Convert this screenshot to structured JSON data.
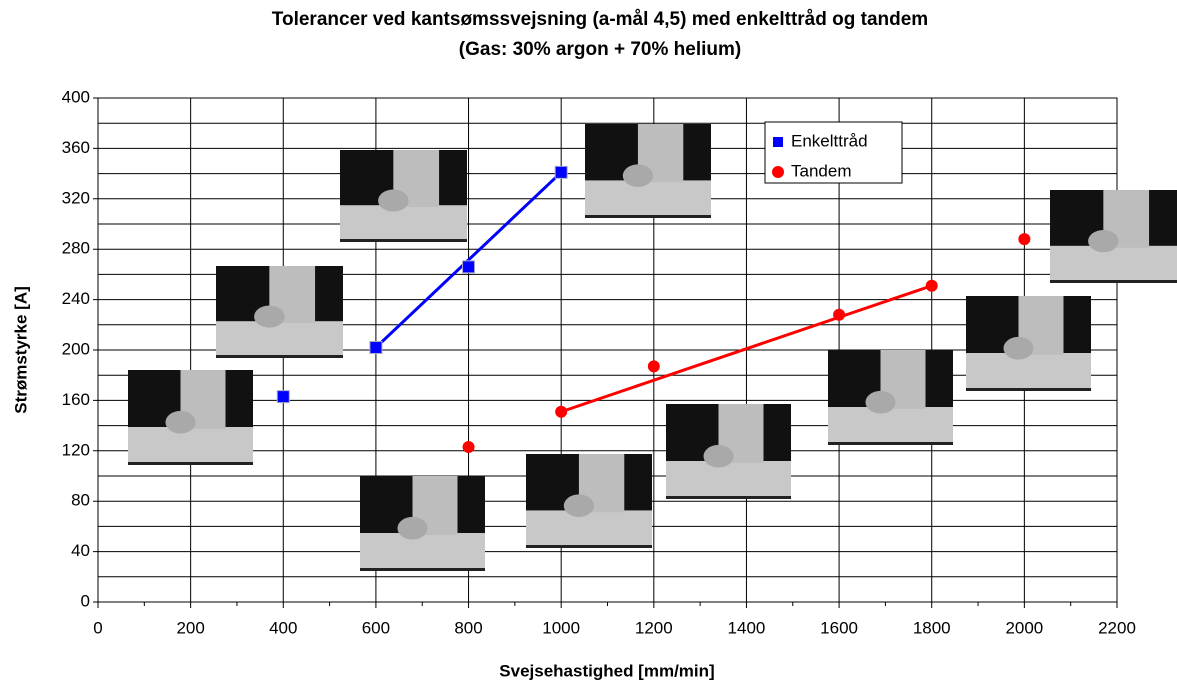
{
  "chart_data": {
    "type": "scatter",
    "title": [
      "Tolerancer ved kantsømssvejsning (a-mål 4,5) med enkelttråd og tandem",
      "(Gas: 30% argon + 70% helium)"
    ],
    "xlabel": "Svejsehastighed [mm/min]",
    "ylabel": "Strømstyrke [A]",
    "xlim": [
      0,
      2200
    ],
    "xticks": [
      0,
      200,
      400,
      600,
      800,
      1000,
      1200,
      1400,
      1600,
      1800,
      2000,
      2200
    ],
    "xminor": [
      100,
      300,
      500,
      700,
      900,
      1100,
      1300,
      1500,
      1700,
      1900,
      2100
    ],
    "ylim": [
      0,
      400
    ],
    "yticks": [
      0,
      40,
      80,
      120,
      160,
      200,
      240,
      280,
      320,
      360,
      400
    ],
    "yminor": [
      20,
      60,
      100,
      140,
      180,
      220,
      260,
      300,
      340,
      380
    ],
    "grid": true,
    "legend": "upper-right",
    "series": [
      {
        "name": "Enkelttråd",
        "color": "#0000ff",
        "marker": "square",
        "x": [
          400,
          600,
          800,
          1000
        ],
        "values": [
          163,
          202,
          266,
          341
        ],
        "trendline": {
          "x": [
            600,
            1000
          ],
          "y": [
            202,
            341
          ]
        }
      },
      {
        "name": "Tandem",
        "color": "#ff0000",
        "marker": "circle",
        "x": [
          800,
          1000,
          1200,
          1600,
          1800,
          2000
        ],
        "values": [
          123,
          151,
          187,
          228,
          251,
          288
        ],
        "trendline": {
          "x": [
            1000,
            1800
          ],
          "y": [
            151,
            251
          ]
        }
      }
    ]
  }
}
